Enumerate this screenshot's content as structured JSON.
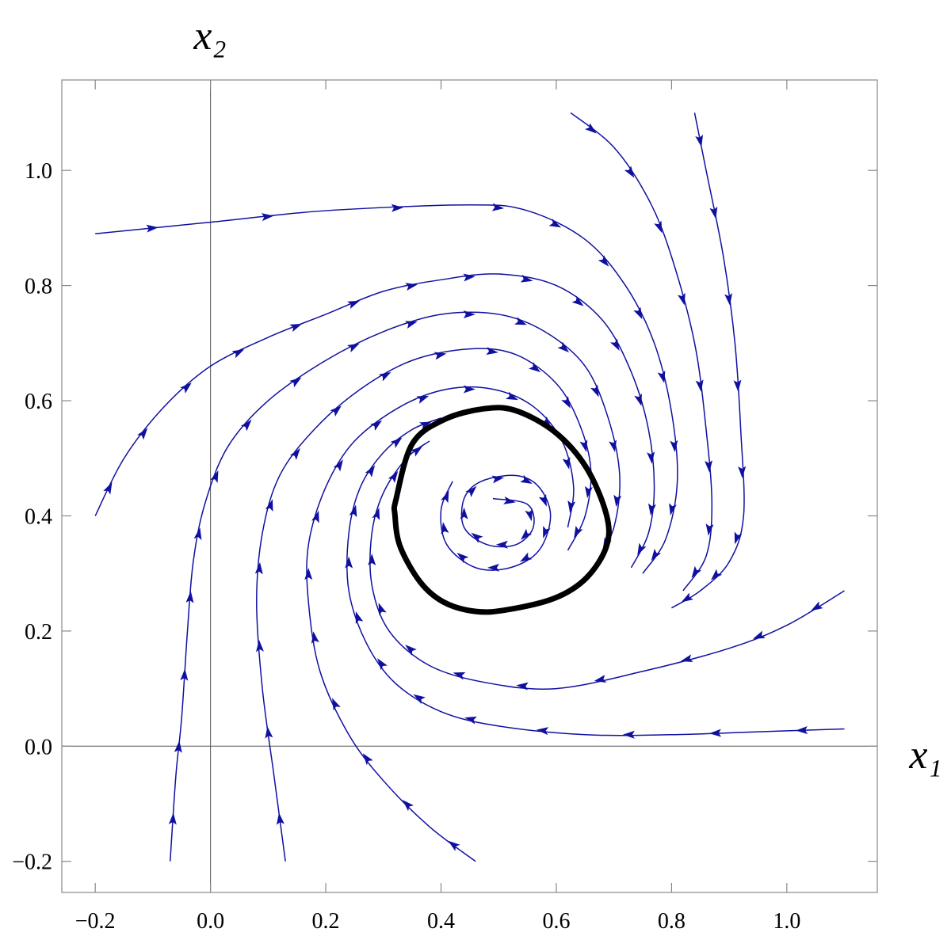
{
  "chart_data": {
    "type": "line",
    "x_label": "x₁",
    "y_label": "x₂",
    "xlim": [
      -0.258,
      1.157
    ],
    "ylim": [
      -0.254,
      1.157
    ],
    "xticks": [
      {
        "value": -0.2,
        "label": "−0.2"
      },
      {
        "value": 0,
        "label": "0.0"
      },
      0.2,
      0.4,
      0.6,
      0.8,
      {
        "value": 1,
        "label": "1.0"
      }
    ],
    "yticks": [
      {
        "value": -0.2,
        "label": "−0.2"
      },
      {
        "value": 0,
        "label": "0.0"
      },
      0.2,
      0.4,
      0.6,
      0.8,
      {
        "value": 1,
        "label": "1.0"
      }
    ],
    "zero_axes": true,
    "series": [
      {
        "color": "#1010a0",
        "linewidth": 1.5,
        "arrows": true,
        "x": [
          -0.2,
          0,
          0.2,
          0.45,
          0.55,
          0.65,
          0.72,
          0.77,
          0.8,
          0.81,
          0.79,
          0.75
        ],
        "y": [
          0.89,
          0.91,
          0.93,
          0.94,
          0.93,
          0.88,
          0.8,
          0.7,
          0.58,
          0.46,
          0.36,
          0.3
        ]
      },
      {
        "color": "#1010a0",
        "linewidth": 1.5,
        "arrows": true,
        "x": [
          0.625,
          0.7,
          0.76,
          0.8,
          0.84,
          0.86,
          0.87,
          0.86,
          0.82
        ],
        "y": [
          1.1,
          1.04,
          0.95,
          0.85,
          0.7,
          0.55,
          0.42,
          0.33,
          0.27
        ]
      },
      {
        "color": "#1010a0",
        "linewidth": 1.5,
        "arrows": true,
        "x": [
          0.84,
          0.86,
          0.89,
          0.91,
          0.92,
          0.925,
          0.9,
          0.85,
          0.8
        ],
        "y": [
          1.1,
          1.0,
          0.85,
          0.7,
          0.55,
          0.4,
          0.32,
          0.27,
          0.24
        ]
      },
      {
        "color": "#1010a0",
        "linewidth": 1.5,
        "arrows": true,
        "x": [
          -0.2,
          -0.15,
          -0.08,
          0,
          0.1,
          0.2,
          0.3,
          0.4,
          0.5,
          0.6,
          0.68,
          0.73,
          0.76,
          0.77,
          0.76,
          0.73
        ],
        "y": [
          0.4,
          0.5,
          0.59,
          0.66,
          0.71,
          0.75,
          0.79,
          0.81,
          0.82,
          0.8,
          0.74,
          0.65,
          0.55,
          0.45,
          0.37,
          0.31
        ]
      },
      {
        "color": "#1010a0",
        "linewidth": 1.5,
        "arrows": true,
        "x": [
          -0.07,
          -0.06,
          -0.05,
          -0.04,
          -0.03,
          -0.01,
          0.03,
          0.1,
          0.2,
          0.3,
          0.4,
          0.5,
          0.58,
          0.65,
          0.69,
          0.71,
          0.7,
          0.67
        ],
        "y": [
          -0.2,
          -0.05,
          0.05,
          0.2,
          0.32,
          0.42,
          0.52,
          0.6,
          0.67,
          0.72,
          0.75,
          0.75,
          0.72,
          0.66,
          0.57,
          0.47,
          0.38,
          0.32
        ]
      },
      {
        "color": "#1010a0",
        "linewidth": 1.5,
        "arrows": true,
        "x": [
          0.13,
          0.11,
          0.09,
          0.08,
          0.09,
          0.12,
          0.18,
          0.26,
          0.35,
          0.45,
          0.53,
          0.6,
          0.64,
          0.66,
          0.65,
          0.62
        ],
        "y": [
          -0.2,
          -0.05,
          0.1,
          0.25,
          0.37,
          0.47,
          0.55,
          0.62,
          0.67,
          0.69,
          0.68,
          0.63,
          0.56,
          0.48,
          0.4,
          0.34
        ]
      },
      {
        "color": "#1010a0",
        "linewidth": 1.5,
        "arrows": true,
        "x": [
          0.46,
          0.38,
          0.3,
          0.24,
          0.19,
          0.17,
          0.17,
          0.2,
          0.25,
          0.33,
          0.41,
          0.49,
          0.56,
          0.61,
          0.63,
          0.62
        ],
        "y": [
          -0.2,
          -0.14,
          -0.06,
          0.02,
          0.13,
          0.25,
          0.35,
          0.45,
          0.53,
          0.59,
          0.62,
          0.62,
          0.59,
          0.53,
          0.45,
          0.38
        ]
      },
      {
        "color": "#1010a0",
        "linewidth": 1.5,
        "arrows": true,
        "x": [
          1.1,
          0.95,
          0.8,
          0.65,
          0.5,
          0.4,
          0.32,
          0.27,
          0.24,
          0.24,
          0.26,
          0.3,
          0.35,
          0.4
        ],
        "y": [
          0.03,
          0.025,
          0.02,
          0.02,
          0.035,
          0.06,
          0.11,
          0.18,
          0.27,
          0.37,
          0.45,
          0.51,
          0.55,
          0.57
        ]
      },
      {
        "color": "#1010a0",
        "linewidth": 1.5,
        "arrows": true,
        "x": [
          1.1,
          1.0,
          0.9,
          0.75,
          0.6,
          0.48,
          0.38,
          0.31,
          0.28,
          0.28,
          0.3,
          0.34,
          0.38
        ],
        "y": [
          0.27,
          0.21,
          0.17,
          0.13,
          0.1,
          0.11,
          0.14,
          0.2,
          0.28,
          0.37,
          0.44,
          0.5,
          0.53
        ]
      },
      {
        "color": "#1010a0",
        "linewidth": 1.5,
        "arrows": true,
        "x": [
          0.49,
          0.55,
          0.56,
          0.53,
          0.48,
          0.44,
          0.44,
          0.47,
          0.53,
          0.57,
          0.59,
          0.57,
          0.52,
          0.46,
          0.41,
          0.4,
          0.42
        ],
        "y": [
          0.43,
          0.42,
          0.38,
          0.35,
          0.35,
          0.38,
          0.43,
          0.46,
          0.47,
          0.45,
          0.4,
          0.34,
          0.31,
          0.31,
          0.35,
          0.41,
          0.46
        ]
      },
      {
        "color": "#000000",
        "linewidth": 7,
        "arrows": false,
        "closed": true,
        "x": [
          0.322,
          0.35,
          0.405,
          0.474,
          0.529,
          0.597,
          0.652,
          0.687,
          0.687,
          0.652,
          0.597,
          0.515,
          0.46,
          0.405,
          0.364,
          0.329,
          0.32
        ],
        "y": [
          0.429,
          0.525,
          0.567,
          0.586,
          0.583,
          0.546,
          0.484,
          0.402,
          0.347,
          0.292,
          0.257,
          0.237,
          0.234,
          0.25,
          0.285,
          0.347,
          0.402
        ]
      }
    ]
  }
}
